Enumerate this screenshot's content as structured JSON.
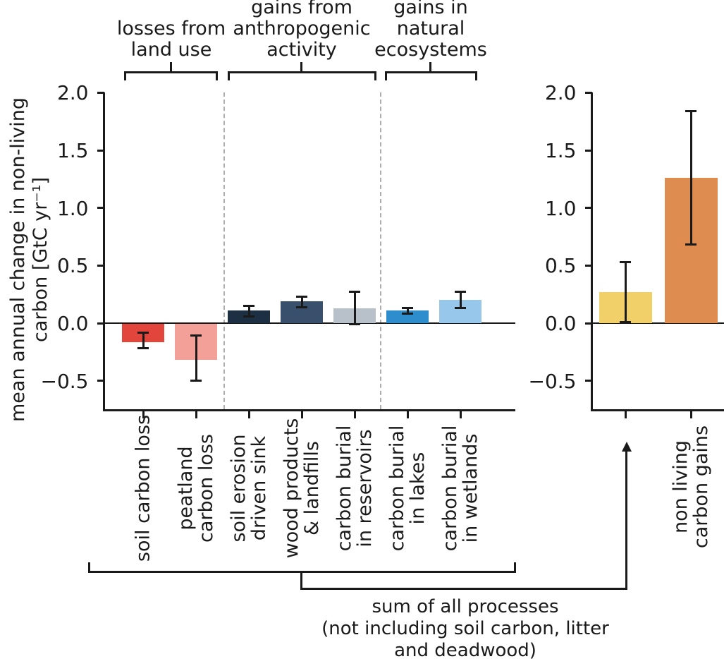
{
  "figure": {
    "ylabel": "mean annual change in non-living\ncarbon [GtC yr⁻¹]",
    "group_labels": [
      "losses from\nland use",
      "gains from\nanthropogenic\nactivity",
      "gains in\nnatural\necosystems"
    ],
    "annotation": "sum of all processes\n(not including soil carbon, litter\nand deadwood)",
    "colors": {
      "axis": "#1a1a1a",
      "separator": "#adadad",
      "errorbar": "#1a1a1a"
    }
  },
  "chart_data": [
    {
      "type": "bar",
      "panel": "left-processes-panel",
      "ylabel": "mean annual change in non-living carbon [GtC yr⁻¹]",
      "ylim": [
        -0.75,
        2.0
      ],
      "yticks": [
        2.0,
        1.5,
        1.0,
        0.5,
        0.0,
        -0.5
      ],
      "grid": false,
      "legend": "none",
      "categories": [
        "soil carbon loss",
        "peatland\ncarbon loss",
        "soil erosion\ndriven sink",
        "wood products\n& landfills",
        "carbon burial\nin reservoirs",
        "carbon burial\nin lakes",
        "carbon burial\nin wetlands"
      ],
      "values": [
        -0.16,
        -0.31,
        0.11,
        0.19,
        0.13,
        0.11,
        0.2
      ],
      "error_low": [
        -0.22,
        -0.5,
        0.06,
        0.14,
        -0.01,
        0.08,
        0.13
      ],
      "error_high": [
        -0.08,
        -0.11,
        0.15,
        0.23,
        0.27,
        0.13,
        0.27
      ],
      "bar_colors": [
        "#e2453c",
        "#f2a098",
        "#1c2f43",
        "#38506b",
        "#b8c1c9",
        "#2d8dcd",
        "#97c8eb"
      ],
      "groups": [
        {
          "label": "losses from land use",
          "bars": [
            "soil carbon loss",
            "peatland carbon loss"
          ]
        },
        {
          "label": "gains from anthropogenic activity",
          "bars": [
            "soil erosion driven sink",
            "wood products & landfills",
            "carbon burial in reservoirs"
          ]
        },
        {
          "label": "gains in natural ecosystems",
          "bars": [
            "carbon burial in lakes",
            "carbon burial in wetlands"
          ]
        }
      ]
    },
    {
      "type": "bar",
      "panel": "right-sum-panel",
      "ylim": [
        -0.75,
        2.0
      ],
      "yticks": [
        2.0,
        1.5,
        1.0,
        0.5,
        0.0,
        -0.5
      ],
      "grid": false,
      "legend": "none",
      "categories": [
        "",
        "non living\ncarbon gains"
      ],
      "values": [
        0.27,
        1.26
      ],
      "error_low": [
        0.01,
        0.68
      ],
      "error_high": [
        0.53,
        1.84
      ],
      "bar_colors": [
        "#f2d069",
        "#df8c50"
      ],
      "annotation": "sum of all processes (not including soil carbon, litter and deadwood)"
    }
  ]
}
